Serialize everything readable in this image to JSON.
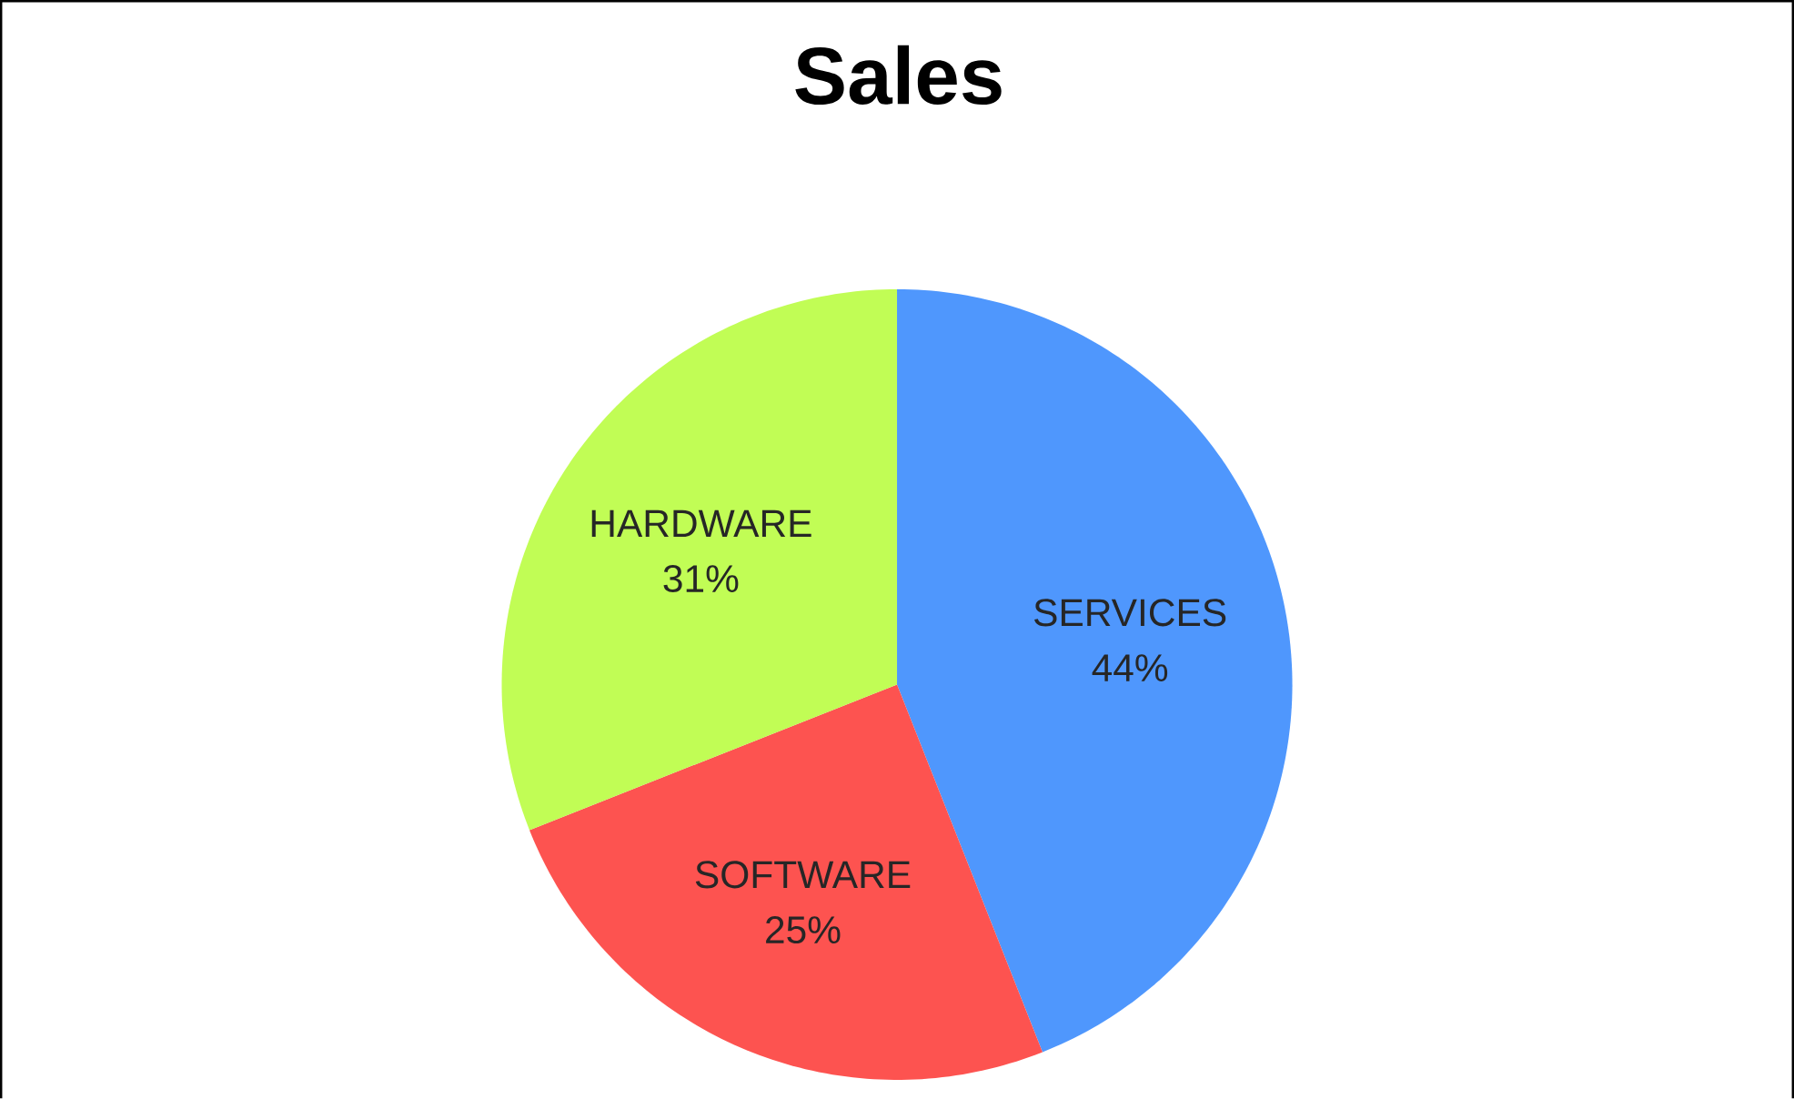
{
  "chart_data": {
    "type": "pie",
    "title": "Sales",
    "categories": [
      "SERVICES",
      "SOFTWARE",
      "HARDWARE"
    ],
    "values": [
      44,
      25,
      31
    ],
    "colors": [
      "#4f97fd",
      "#fd5350",
      "#c1fd55"
    ],
    "value_labels": [
      "44%",
      "25%",
      "31%"
    ]
  }
}
